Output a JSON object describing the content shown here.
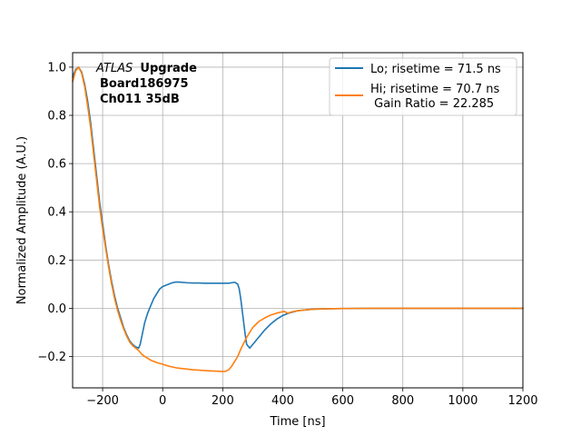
{
  "chart_data": {
    "type": "line",
    "xlabel": "Time [ns]",
    "ylabel": "Normalized Amplitude (A.U.)",
    "xlim": [
      -300,
      1200
    ],
    "ylim": [
      -0.33,
      1.06
    ],
    "xticks": [
      -200,
      0,
      200,
      400,
      600,
      800,
      1000,
      1200
    ],
    "xtick_labels": [
      "−200",
      "0",
      "200",
      "400",
      "600",
      "800",
      "1000",
      "1200"
    ],
    "yticks": [
      -0.2,
      0.0,
      0.2,
      0.4,
      0.6,
      0.8,
      1.0
    ],
    "ytick_labels": [
      "−0.2",
      "0.0",
      "0.2",
      "0.4",
      "0.6",
      "0.8",
      "1.0"
    ],
    "grid": true,
    "legend_position": "top-right",
    "annotation": {
      "atlas": "ATLAS",
      "upgrade": "Upgrade",
      "board": "Board186975",
      "channel": "Ch011 35dB"
    },
    "series": [
      {
        "name": "Lo; risetime = 71.5 ns",
        "color": "#1f77b4",
        "x": [
          -300,
          -290,
          -280,
          -270,
          -260,
          -250,
          -240,
          -230,
          -220,
          -210,
          -200,
          -190,
          -180,
          -170,
          -160,
          -150,
          -140,
          -130,
          -120,
          -110,
          -100,
          -90,
          -80,
          -75,
          -70,
          -60,
          -50,
          -40,
          -30,
          -20,
          -10,
          0,
          10,
          20,
          30,
          40,
          50,
          60,
          80,
          100,
          120,
          140,
          160,
          180,
          200,
          220,
          230,
          240,
          250,
          255,
          260,
          265,
          270,
          275,
          280,
          290,
          300,
          320,
          340,
          360,
          380,
          400,
          420,
          450,
          500,
          550,
          600,
          700,
          800,
          900,
          1000,
          1100,
          1200
        ],
        "y": [
          0.96,
          0.99,
          1.0,
          0.98,
          0.93,
          0.86,
          0.77,
          0.66,
          0.55,
          0.44,
          0.35,
          0.26,
          0.18,
          0.11,
          0.05,
          0.0,
          -0.04,
          -0.08,
          -0.11,
          -0.135,
          -0.15,
          -0.16,
          -0.165,
          -0.15,
          -0.12,
          -0.06,
          -0.02,
          0.01,
          0.04,
          0.06,
          0.08,
          0.09,
          0.095,
          0.1,
          0.105,
          0.108,
          0.109,
          0.108,
          0.106,
          0.105,
          0.105,
          0.104,
          0.104,
          0.104,
          0.104,
          0.104,
          0.106,
          0.108,
          0.1,
          0.08,
          0.04,
          -0.01,
          -0.06,
          -0.11,
          -0.15,
          -0.165,
          -0.15,
          -0.12,
          -0.09,
          -0.065,
          -0.045,
          -0.03,
          -0.02,
          -0.01,
          -0.004,
          -0.002,
          -0.001,
          0.0,
          0.0,
          0.0,
          0.0,
          0.0,
          0.0
        ]
      },
      {
        "name": "Hi; risetime = 70.7 ns\n Gain Ratio = 22.285",
        "color": "#ff7f0e",
        "x": [
          -300,
          -290,
          -280,
          -270,
          -260,
          -250,
          -240,
          -230,
          -220,
          -210,
          -200,
          -190,
          -180,
          -170,
          -160,
          -150,
          -140,
          -130,
          -120,
          -110,
          -100,
          -90,
          -80,
          -70,
          -60,
          -40,
          -20,
          0,
          20,
          50,
          100,
          150,
          200,
          210,
          220,
          230,
          240,
          250,
          260,
          280,
          300,
          320,
          340,
          360,
          380,
          400,
          405,
          410,
          415,
          420,
          430,
          450,
          500,
          550,
          600,
          700,
          800,
          900,
          1000,
          1100,
          1200
        ],
        "y": [
          0.94,
          0.985,
          1.0,
          0.975,
          0.92,
          0.84,
          0.75,
          0.64,
          0.53,
          0.42,
          0.33,
          0.25,
          0.17,
          0.1,
          0.04,
          -0.01,
          -0.05,
          -0.085,
          -0.115,
          -0.14,
          -0.155,
          -0.165,
          -0.175,
          -0.19,
          -0.2,
          -0.215,
          -0.225,
          -0.232,
          -0.24,
          -0.248,
          -0.255,
          -0.259,
          -0.262,
          -0.261,
          -0.255,
          -0.24,
          -0.22,
          -0.2,
          -0.17,
          -0.12,
          -0.08,
          -0.055,
          -0.04,
          -0.028,
          -0.02,
          -0.014,
          -0.013,
          -0.016,
          -0.02,
          -0.019,
          -0.015,
          -0.01,
          -0.004,
          -0.002,
          -0.001,
          0.0,
          0.0,
          0.0,
          0.0,
          0.0,
          0.0
        ]
      }
    ]
  }
}
